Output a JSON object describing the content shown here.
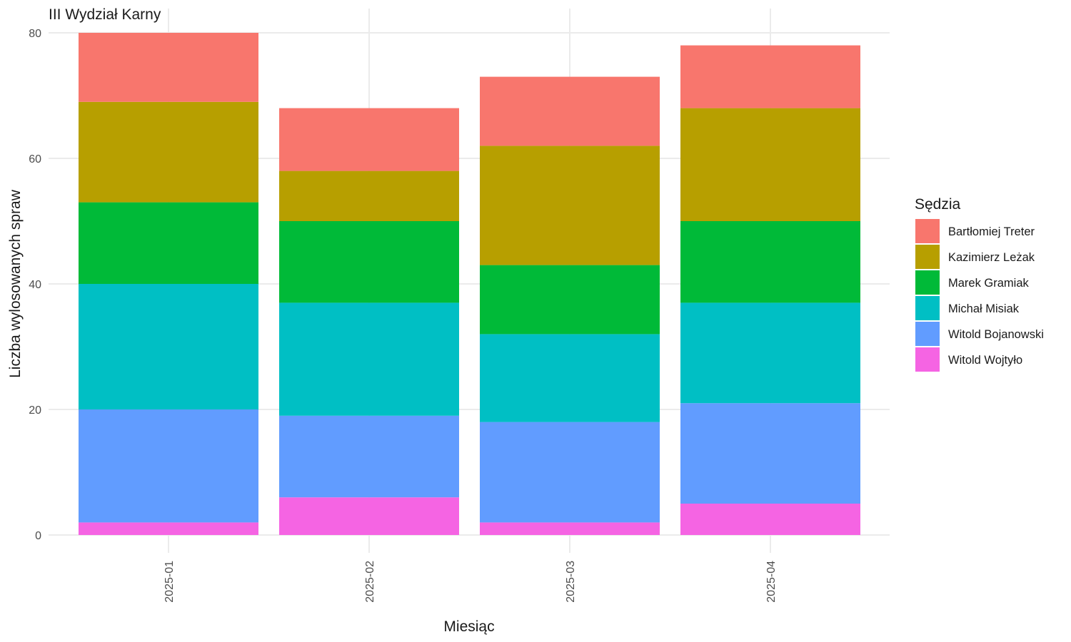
{
  "chart_data": {
    "type": "bar",
    "stacked": true,
    "title": "III Wydział Karny",
    "xlabel": "Miesiąc",
    "ylabel": "Liczba wylosowanych spraw",
    "categories": [
      "2025-01",
      "2025-02",
      "2025-03",
      "2025-04"
    ],
    "ylim": [
      0,
      80
    ],
    "yticks": [
      0,
      20,
      40,
      60,
      80
    ],
    "grid": true,
    "legend": {
      "title": "Sędzia",
      "placement": "right"
    },
    "series": [
      {
        "name": "Witold Wojtyło",
        "color": "#F564E3",
        "values": [
          2,
          6,
          2,
          5
        ]
      },
      {
        "name": "Witold Bojanowski",
        "color": "#619CFF",
        "values": [
          18,
          13,
          16,
          16
        ]
      },
      {
        "name": "Michał Misiak",
        "color": "#00BFC4",
        "values": [
          20,
          18,
          14,
          16
        ]
      },
      {
        "name": "Marek Gramiak",
        "color": "#00BA38",
        "values": [
          13,
          13,
          11,
          13
        ]
      },
      {
        "name": "Kazimierz Leżak",
        "color": "#B79F00",
        "values": [
          16,
          8,
          19,
          18
        ]
      },
      {
        "name": "Bartłomiej Treter",
        "color": "#F8766D",
        "values": [
          11,
          10,
          11,
          10
        ]
      }
    ],
    "legend_order": [
      "Bartłomiej Treter",
      "Kazimierz Leżak",
      "Marek Gramiak",
      "Michał Misiak",
      "Witold Bojanowski",
      "Witold Wojtyło"
    ]
  }
}
